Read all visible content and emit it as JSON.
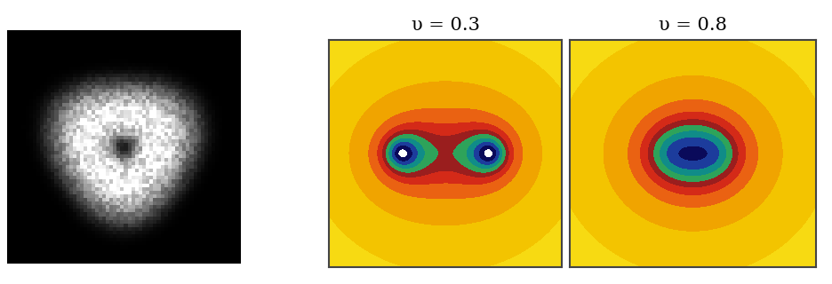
{
  "chart_data": [
    {
      "type": "image",
      "tick_labels": false
    },
    {
      "type": "contour",
      "title": "υ = 0.3",
      "v": 0.3,
      "tick_labels": false
    },
    {
      "type": "contour",
      "title": "υ = 0.8",
      "v": 0.8,
      "tick_labels": false
    }
  ]
}
